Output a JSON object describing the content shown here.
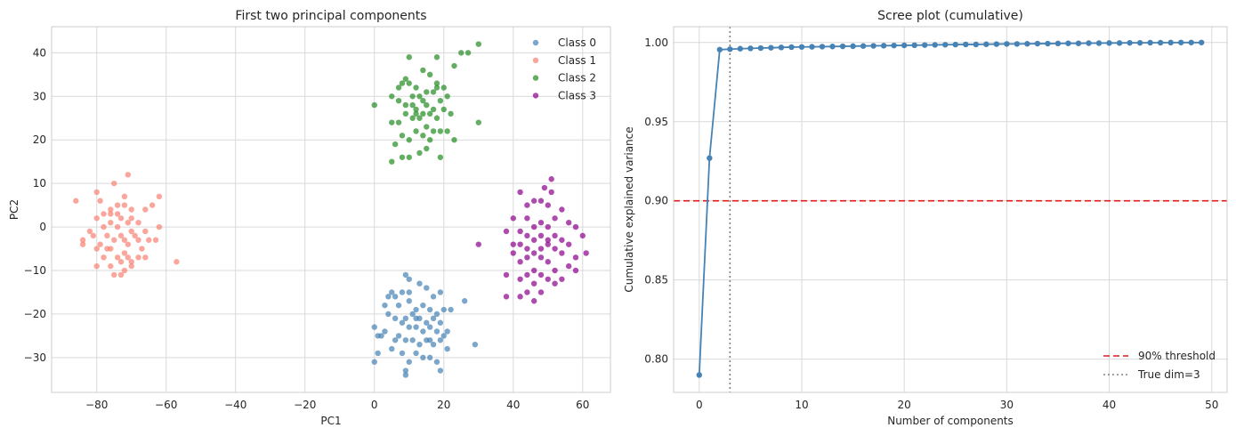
{
  "chart_data": [
    {
      "type": "scatter",
      "title": "First two principal components",
      "xlabel": "PC1",
      "ylabel": "PC2",
      "xlim": [
        -93,
        68
      ],
      "ylim": [
        -38,
        46
      ],
      "xticks": [
        -80,
        -60,
        -40,
        -20,
        0,
        20,
        40,
        60
      ],
      "yticks": [
        -30,
        -20,
        -10,
        0,
        10,
        20,
        30,
        40
      ],
      "grid": true,
      "legend_position": "top-right",
      "series": [
        {
          "name": "Class 0",
          "color": "#4682b4",
          "points": [
            [
              9,
              -11
            ],
            [
              10,
              -12
            ],
            [
              13,
              -13
            ],
            [
              15,
              -14
            ],
            [
              10,
              -15
            ],
            [
              8,
              -15
            ],
            [
              5,
              -15
            ],
            [
              6,
              -16
            ],
            [
              4,
              -16
            ],
            [
              17,
              -16
            ],
            [
              19,
              -15
            ],
            [
              26,
              -17
            ],
            [
              3,
              -18
            ],
            [
              7,
              -18
            ],
            [
              10,
              -17
            ],
            [
              12,
              -19
            ],
            [
              14,
              -18
            ],
            [
              16,
              -19
            ],
            [
              18,
              -20
            ],
            [
              20,
              -19
            ],
            [
              22,
              -19
            ],
            [
              11,
              -20
            ],
            [
              9,
              -21
            ],
            [
              13,
              -21
            ],
            [
              15,
              -22
            ],
            [
              17,
              -21
            ],
            [
              19,
              -22
            ],
            [
              6,
              -21
            ],
            [
              4,
              -20
            ],
            [
              8,
              -22
            ],
            [
              10,
              -23
            ],
            [
              12,
              -23
            ],
            [
              14,
              -24
            ],
            [
              16,
              -23
            ],
            [
              18,
              -24
            ],
            [
              20,
              -25
            ],
            [
              0,
              -23
            ],
            [
              3,
              -24
            ],
            [
              2,
              -25
            ],
            [
              7,
              -25
            ],
            [
              9,
              -26
            ],
            [
              11,
              -26
            ],
            [
              13,
              -27
            ],
            [
              15,
              -26
            ],
            [
              17,
              -27
            ],
            [
              19,
              -26
            ],
            [
              21,
              -28
            ],
            [
              29,
              -27
            ],
            [
              1,
              -29
            ],
            [
              5,
              -28
            ],
            [
              8,
              -29
            ],
            [
              12,
              -29
            ],
            [
              14,
              -30
            ],
            [
              16,
              -30
            ],
            [
              18,
              -31
            ],
            [
              0,
              -31
            ],
            [
              10,
              -31
            ],
            [
              9,
              -33
            ],
            [
              19,
              -33
            ],
            [
              9,
              -34
            ],
            [
              16,
              -26
            ],
            [
              6,
              -26
            ],
            [
              12,
              -21
            ],
            [
              1,
              -25
            ],
            [
              21,
              -24
            ]
          ]
        },
        {
          "name": "Class 1",
          "color": "#fa8072",
          "points": [
            [
              -71,
              12
            ],
            [
              -75,
              10
            ],
            [
              -80,
              8
            ],
            [
              -72,
              7
            ],
            [
              -62,
              7
            ],
            [
              -79,
              6
            ],
            [
              -72,
              5
            ],
            [
              -76,
              4
            ],
            [
              -70,
              4
            ],
            [
              -66,
              4
            ],
            [
              -78,
              3
            ],
            [
              -74,
              3
            ],
            [
              -70,
              2
            ],
            [
              -80,
              2
            ],
            [
              -76,
              1
            ],
            [
              -73,
              2
            ],
            [
              -71,
              1
            ],
            [
              -68,
              1
            ],
            [
              -86,
              6
            ],
            [
              -82,
              -1
            ],
            [
              -78,
              0
            ],
            [
              -74,
              0
            ],
            [
              -70,
              -1
            ],
            [
              -66,
              -1
            ],
            [
              -62,
              0
            ],
            [
              -81,
              -2
            ],
            [
              -77,
              -2
            ],
            [
              -73,
              -2
            ],
            [
              -69,
              -2
            ],
            [
              -65,
              -3
            ],
            [
              -79,
              -4
            ],
            [
              -75,
              -3
            ],
            [
              -71,
              -4
            ],
            [
              -67,
              -5
            ],
            [
              -63,
              -3
            ],
            [
              -84,
              -3
            ],
            [
              -80,
              -5
            ],
            [
              -76,
              -5
            ],
            [
              -72,
              -6
            ],
            [
              -68,
              -7
            ],
            [
              -84,
              -4
            ],
            [
              -78,
              -7
            ],
            [
              -74,
              -7
            ],
            [
              -70,
              -8
            ],
            [
              -66,
              -7
            ],
            [
              -80,
              -9
            ],
            [
              -76,
              -9
            ],
            [
              -72,
              -10
            ],
            [
              -75,
              -11
            ],
            [
              -73,
              -11
            ],
            [
              -57,
              -8
            ],
            [
              -70,
              -9
            ],
            [
              -77,
              -5
            ],
            [
              -71,
              -7
            ],
            [
              -76,
              3
            ],
            [
              -74,
              5
            ],
            [
              -64,
              5
            ],
            [
              -72,
              -3
            ],
            [
              -68,
              -3
            ],
            [
              -73,
              -8
            ]
          ]
        },
        {
          "name": "Class 2",
          "color": "#228b22",
          "points": [
            [
              30,
              42
            ],
            [
              25,
              40
            ],
            [
              27,
              40
            ],
            [
              18,
              39
            ],
            [
              10,
              39
            ],
            [
              23,
              37
            ],
            [
              14,
              36
            ],
            [
              16,
              35
            ],
            [
              9,
              34
            ],
            [
              8,
              33
            ],
            [
              10,
              33
            ],
            [
              18,
              33
            ],
            [
              20,
              32
            ],
            [
              12,
              32
            ],
            [
              7,
              32
            ],
            [
              15,
              31
            ],
            [
              17,
              31
            ],
            [
              21,
              30
            ],
            [
              5,
              30
            ],
            [
              11,
              30
            ],
            [
              13,
              30
            ],
            [
              19,
              29
            ],
            [
              0,
              28
            ],
            [
              7,
              29
            ],
            [
              9,
              28
            ],
            [
              15,
              28
            ],
            [
              17,
              27
            ],
            [
              12,
              27
            ],
            [
              14,
              26
            ],
            [
              16,
              26
            ],
            [
              20,
              27
            ],
            [
              9,
              26
            ],
            [
              11,
              25
            ],
            [
              13,
              25
            ],
            [
              18,
              25
            ],
            [
              22,
              26
            ],
            [
              5,
              24
            ],
            [
              7,
              24
            ],
            [
              30,
              24
            ],
            [
              15,
              23
            ],
            [
              17,
              22
            ],
            [
              19,
              22
            ],
            [
              21,
              22
            ],
            [
              12,
              22
            ],
            [
              14,
              21
            ],
            [
              8,
              21
            ],
            [
              10,
              20
            ],
            [
              16,
              20
            ],
            [
              23,
              20
            ],
            [
              6,
              19
            ],
            [
              15,
              18
            ],
            [
              13,
              17
            ],
            [
              10,
              16
            ],
            [
              19,
              16
            ],
            [
              8,
              16
            ],
            [
              5,
              15
            ],
            [
              12,
              26
            ],
            [
              14,
              29
            ],
            [
              18,
              32
            ],
            [
              11,
              28
            ]
          ]
        },
        {
          "name": "Class 3",
          "color": "#8b008b",
          "points": [
            [
              51,
              11
            ],
            [
              49,
              9
            ],
            [
              42,
              8
            ],
            [
              51,
              8
            ],
            [
              46,
              6
            ],
            [
              48,
              6
            ],
            [
              44,
              5
            ],
            [
              50,
              5
            ],
            [
              54,
              4
            ],
            [
              40,
              2
            ],
            [
              44,
              2
            ],
            [
              48,
              1
            ],
            [
              52,
              2
            ],
            [
              56,
              1
            ],
            [
              46,
              0
            ],
            [
              50,
              0
            ],
            [
              58,
              0
            ],
            [
              38,
              -1
            ],
            [
              42,
              -1
            ],
            [
              44,
              -2
            ],
            [
              48,
              -2
            ],
            [
              52,
              -2
            ],
            [
              54,
              -3
            ],
            [
              46,
              -3
            ],
            [
              60,
              -2
            ],
            [
              30,
              -4
            ],
            [
              40,
              -4
            ],
            [
              42,
              -4
            ],
            [
              50,
              -4
            ],
            [
              56,
              -4
            ],
            [
              44,
              -5
            ],
            [
              48,
              -5
            ],
            [
              52,
              -5
            ],
            [
              46,
              -6
            ],
            [
              40,
              -6
            ],
            [
              54,
              -6
            ],
            [
              58,
              -7
            ],
            [
              44,
              -7
            ],
            [
              48,
              -7
            ],
            [
              50,
              -8
            ],
            [
              42,
              -8
            ],
            [
              56,
              -9
            ],
            [
              61,
              -6
            ],
            [
              46,
              -10
            ],
            [
              52,
              -10
            ],
            [
              38,
              -11
            ],
            [
              44,
              -11
            ],
            [
              48,
              -11
            ],
            [
              54,
              -12
            ],
            [
              50,
              -12
            ],
            [
              42,
              -12
            ],
            [
              46,
              -13
            ],
            [
              52,
              -13
            ],
            [
              44,
              -15
            ],
            [
              48,
              -15
            ],
            [
              42,
              -16
            ],
            [
              38,
              -16
            ],
            [
              46,
              -17
            ],
            [
              58,
              -10
            ],
            [
              50,
              -3
            ]
          ]
        }
      ]
    },
    {
      "type": "line",
      "title": "Scree plot (cumulative)",
      "xlabel": "Number of components",
      "ylabel": "Cumulative explained variance",
      "xlim": [
        -2.5,
        51.5
      ],
      "ylim": [
        0.779,
        1.01
      ],
      "xticks": [
        0,
        10,
        20,
        30,
        40,
        50
      ],
      "yticks": [
        "0.80",
        "0.85",
        "0.90",
        "0.95",
        "1.00"
      ],
      "grid": true,
      "legend_position": "bottom-right",
      "series": [
        {
          "name": "Cumulative explained variance",
          "color": "#4682b4",
          "x": [
            0,
            1,
            2,
            3,
            4,
            5,
            6,
            7,
            8,
            9,
            10,
            11,
            12,
            13,
            14,
            15,
            16,
            17,
            18,
            19,
            20,
            21,
            22,
            23,
            24,
            25,
            26,
            27,
            28,
            29,
            30,
            31,
            32,
            33,
            34,
            35,
            36,
            37,
            38,
            39,
            40,
            41,
            42,
            43,
            44,
            45,
            46,
            47,
            48,
            49
          ],
          "y": [
            0.79,
            0.927,
            0.9955,
            0.9958,
            0.9961,
            0.9963,
            0.9965,
            0.9967,
            0.9969,
            0.9971,
            0.9972,
            0.9973,
            0.9974,
            0.9975,
            0.9976,
            0.9977,
            0.9978,
            0.9979,
            0.998,
            0.9981,
            0.9982,
            0.9983,
            0.9984,
            0.9985,
            0.9986,
            0.9987,
            0.9988,
            0.9988,
            0.9989,
            0.999,
            0.9991,
            0.9991,
            0.9992,
            0.9993,
            0.9993,
            0.9994,
            0.9995,
            0.9995,
            0.9996,
            0.9996,
            0.9997,
            0.9997,
            0.9998,
            0.9998,
            0.9999,
            0.9999,
            0.99995,
            1.0,
            1.0,
            1.0
          ]
        }
      ],
      "reference_lines": [
        {
          "name": "90% threshold",
          "orientation": "horizontal",
          "value": 0.9,
          "color": "#e41a1c",
          "style": "dashed"
        },
        {
          "name": "True dim=3",
          "orientation": "vertical",
          "value": 3,
          "color": "#808080",
          "style": "dotted"
        }
      ]
    }
  ]
}
